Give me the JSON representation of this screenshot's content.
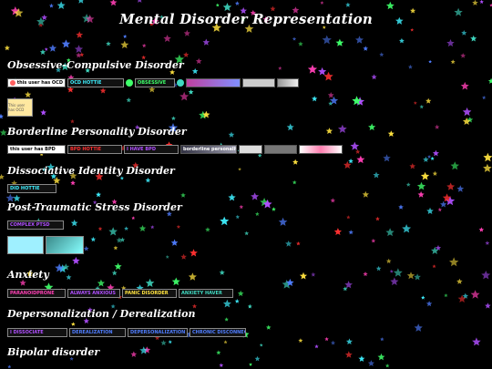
{
  "page": {
    "title": "Mental Disorder Representation",
    "bg": "#000000"
  },
  "sections": {
    "ocd": {
      "heading": "Obsessive-Compulsive Disorder",
      "stamp1": "this user has OCD",
      "stamp2": "OCD HOTTIE",
      "stamp3": "OBSESSIVE",
      "stamp4": "This user has OCD"
    },
    "bpd": {
      "heading": "Borderline Personality Disorder",
      "stamp1": "this user has BPD",
      "stamp2": "BPD HOTTIE",
      "stamp3": "I HAVE BPD",
      "stamp4": "borderline personality disorder"
    },
    "did": {
      "heading": "Dissociative Identity Disorder",
      "stamp1": "DID HOTTIE"
    },
    "ptsd": {
      "heading": "Post-Traumatic Stress Disorder",
      "stamp1": "COMPLEX PTSD"
    },
    "anxiety": {
      "heading": "Anxiety",
      "stamp1": "PARANOIDPRONE",
      "stamp2": "ALWAYS ANXIOUS",
      "stamp3": "PANIC DISORDER",
      "stamp4": "ANXIETY HAVER"
    },
    "dpdr": {
      "heading": "Depersonalization / Derealization",
      "stamp1": "I DISSOCIATE",
      "stamp2": "DEREALIZATION",
      "stamp3": "DEPERSONALIZATION",
      "stamp4": "CHRONIC DISCONNECT"
    },
    "bipolar": {
      "heading": "Bipolar disorder"
    }
  },
  "colors": {
    "cyan": "#3ff0ff",
    "pink": "#ff3fb4",
    "red": "#ff3030",
    "green": "#3fff6a",
    "yellow": "#ffe23f",
    "purple": "#b04fff",
    "blue": "#4f7dff",
    "teal": "#3fd8c0"
  }
}
